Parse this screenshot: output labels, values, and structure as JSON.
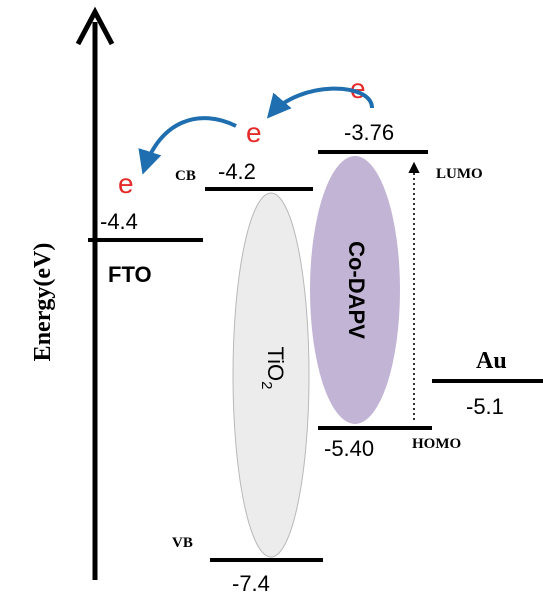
{
  "axis": {
    "label": "Energy(eV)"
  },
  "electron_symbol": "e",
  "fto": {
    "name": "FTO",
    "value": "-4.4"
  },
  "tio2": {
    "name_main": "TiO",
    "name_sub": "2",
    "cb_label": "CB",
    "cb_value": "-4.2",
    "vb_label": "VB",
    "vb_value": "-7.4"
  },
  "dye": {
    "name": "Co-DAPV",
    "lumo_label": "LUMO",
    "lumo_value": "-3.76",
    "homo_label": "HOMO",
    "homo_value": "-5.40"
  },
  "au": {
    "name": "Au",
    "value": "-5.1"
  },
  "colors": {
    "arrow_blue": "#1f6fb0",
    "electron_red": "#e52a2a",
    "dye_fill": "#c2b4d4",
    "tio2_fill": "#ececec"
  }
}
